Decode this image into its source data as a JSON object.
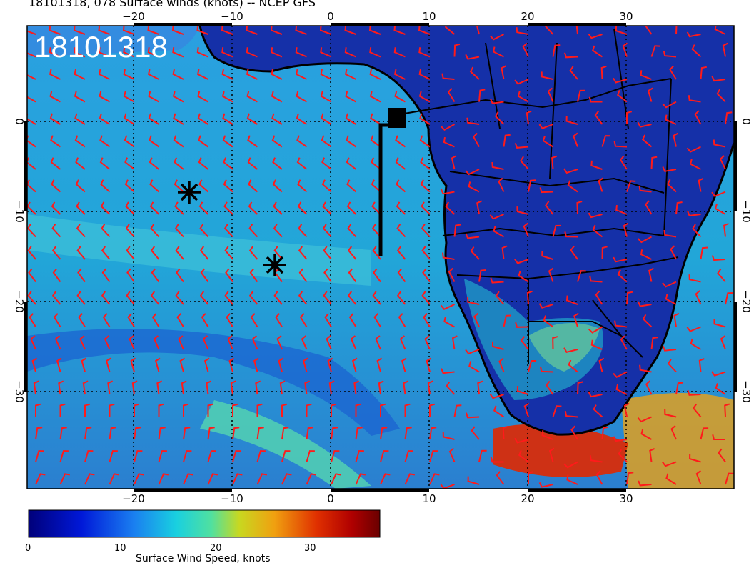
{
  "title": "18101318, 078 Surface winds (knots) -- NCEP GFS",
  "stamp": "18101318",
  "axes": {
    "lon_ticks": [
      "−20",
      "−10",
      "0",
      "10",
      "20",
      "30"
    ],
    "lat_ticks": [
      "0",
      "−10",
      "−20",
      "−30"
    ]
  },
  "colorbar": {
    "label": "Surface Wind Speed, knots",
    "ticks": [
      "0",
      "10",
      "20",
      "30"
    ],
    "range": [
      0,
      37
    ]
  },
  "colors": {
    "land": "#142a9c",
    "ocean": "#2a9ad8",
    "barb": "#ff1a1a",
    "coast": "#000000"
  },
  "markers": [
    {
      "name": "asterisk",
      "lon": -14.8,
      "lat": -8.3
    },
    {
      "name": "asterisk",
      "lon": -5.8,
      "lat": -16.2
    }
  ],
  "track_end_square": {
    "lon": 6.8,
    "lat": 0.3
  }
}
